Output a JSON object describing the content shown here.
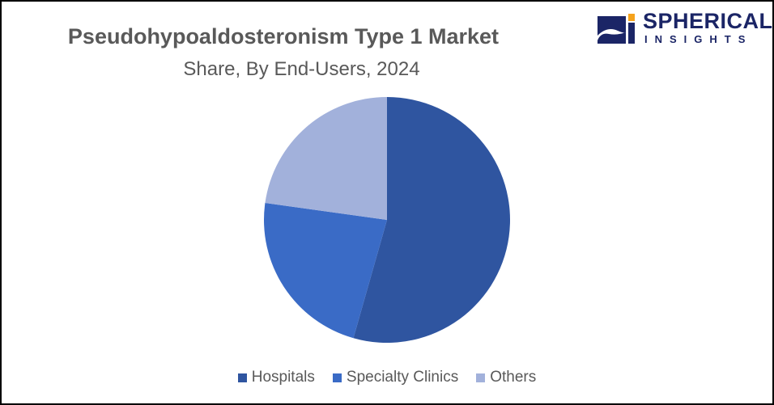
{
  "logo": {
    "line1": "SPHERICAL",
    "line2": "INSIGHTS"
  },
  "chart_data": {
    "type": "pie",
    "title": "Pseudohypoaldosteronism Type 1 Market",
    "subtitle": "Share, By End-Users, 2024",
    "categories": [
      "Hospitals",
      "Specialty Clinics",
      "Others"
    ],
    "values": [
      54.4,
      22.8,
      22.8
    ],
    "colors": [
      "#2f55a0",
      "#3a6bc6",
      "#a2b1db"
    ],
    "legend_position": "bottom",
    "start_angle": "12 o'clock, clockwise"
  }
}
